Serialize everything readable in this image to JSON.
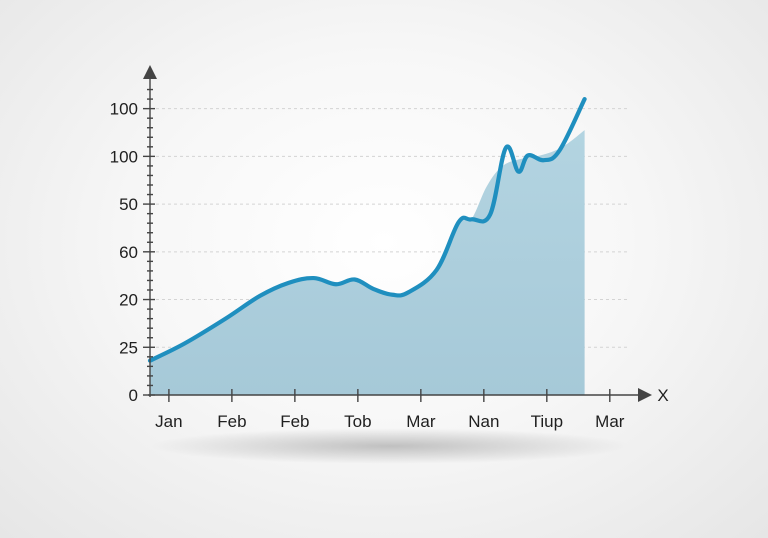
{
  "chart_data": {
    "type": "area",
    "title": "",
    "xlabel": "X",
    "ylabel": "",
    "x_tick_labels": [
      "Jan",
      "Feb",
      "Feb",
      "Tob",
      "Mar",
      "Nan",
      "Tiup",
      "Mar"
    ],
    "y_tick_labels": [
      "0",
      "25",
      "20",
      "60",
      "50",
      "100",
      "100"
    ],
    "y_tick_positions": [
      0,
      1,
      2,
      3,
      4,
      5,
      6
    ],
    "ylim": [
      0,
      6.6
    ],
    "xlim": [
      0,
      7.7
    ],
    "grid": true,
    "legend": "none",
    "colors": {
      "line": "#1f8fbf",
      "area_top": "#b3d4e1",
      "area_bottom": "#a6c9d8",
      "axis": "#444444"
    },
    "series": [
      {
        "kind": "line",
        "points": [
          [
            0.0,
            0.72
          ],
          [
            0.55,
            1.08
          ],
          [
            1.2,
            1.6
          ],
          [
            1.75,
            2.08
          ],
          [
            2.2,
            2.35
          ],
          [
            2.6,
            2.45
          ],
          [
            2.95,
            2.32
          ],
          [
            3.25,
            2.42
          ],
          [
            3.55,
            2.22
          ],
          [
            3.85,
            2.1
          ],
          [
            4.1,
            2.15
          ],
          [
            4.55,
            2.62
          ],
          [
            4.9,
            3.62
          ],
          [
            5.1,
            3.68
          ],
          [
            5.4,
            3.78
          ],
          [
            5.65,
            5.18
          ],
          [
            5.85,
            4.68
          ],
          [
            6.0,
            5.02
          ],
          [
            6.25,
            4.92
          ],
          [
            6.5,
            5.12
          ],
          [
            6.9,
            6.2
          ]
        ]
      },
      {
        "kind": "area",
        "points": [
          [
            0.0,
            0.72
          ],
          [
            0.55,
            1.08
          ],
          [
            1.2,
            1.6
          ],
          [
            1.75,
            2.08
          ],
          [
            2.2,
            2.35
          ],
          [
            2.6,
            2.45
          ],
          [
            2.95,
            2.32
          ],
          [
            3.25,
            2.42
          ],
          [
            3.55,
            2.22
          ],
          [
            3.85,
            2.1
          ],
          [
            4.1,
            2.15
          ],
          [
            4.55,
            2.62
          ],
          [
            4.9,
            3.62
          ],
          [
            5.1,
            3.68
          ],
          [
            5.35,
            4.38
          ],
          [
            5.6,
            4.8
          ],
          [
            5.9,
            4.95
          ],
          [
            6.2,
            5.02
          ],
          [
            6.55,
            5.2
          ],
          [
            6.9,
            5.55
          ]
        ]
      }
    ]
  }
}
